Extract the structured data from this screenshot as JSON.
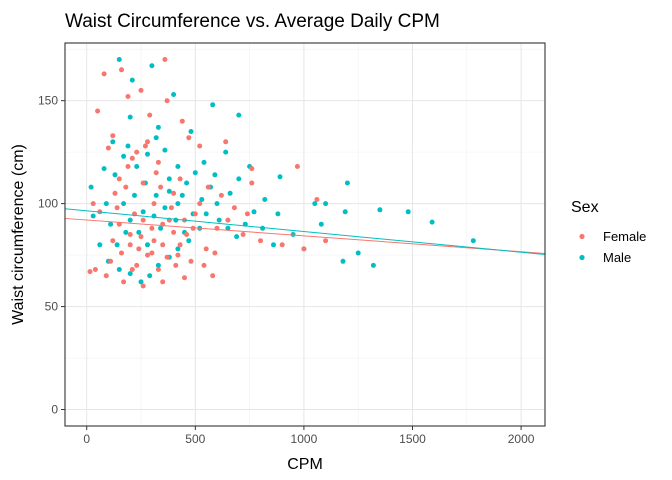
{
  "chart_data": {
    "type": "scatter",
    "title": "Waist Circumference vs. Average Daily CPM",
    "xlabel": "CPM",
    "ylabel": "Waist circumference (cm)",
    "xlim": [
      -100,
      2110
    ],
    "ylim": [
      -8,
      178
    ],
    "x_ticks": [
      0,
      500,
      1000,
      1500,
      2000
    ],
    "y_ticks": [
      0,
      50,
      100,
      150
    ],
    "grid": true,
    "legend": {
      "title": "Sex",
      "position": "right",
      "entries": [
        {
          "name": "Female",
          "color": "#F8766D"
        },
        {
          "name": "Male",
          "color": "#00BFC4"
        }
      ]
    },
    "series": [
      {
        "name": "Female",
        "color": "#F8766D",
        "trend": {
          "x": [
            -100,
            2110
          ],
          "y": [
            92.8,
            75.8
          ]
        },
        "points": [
          [
            80,
            163
          ],
          [
            160,
            165
          ],
          [
            360,
            170
          ],
          [
            250,
            155
          ],
          [
            50,
            145
          ],
          [
            190,
            152
          ],
          [
            370,
            150
          ],
          [
            290,
            143
          ],
          [
            440,
            140
          ],
          [
            120,
            133
          ],
          [
            100,
            127
          ],
          [
            330,
            120
          ],
          [
            280,
            130
          ],
          [
            520,
            128
          ],
          [
            470,
            132
          ],
          [
            640,
            130
          ],
          [
            760,
            117
          ],
          [
            970,
            118
          ],
          [
            1060,
            102
          ],
          [
            760,
            110
          ],
          [
            30,
            100
          ],
          [
            60,
            96
          ],
          [
            15,
            67
          ],
          [
            40,
            68
          ],
          [
            90,
            65
          ],
          [
            170,
            62
          ],
          [
            260,
            60
          ],
          [
            350,
            62
          ],
          [
            450,
            64
          ],
          [
            580,
            65
          ],
          [
            150,
            90
          ],
          [
            200,
            85
          ],
          [
            220,
            95
          ],
          [
            240,
            78
          ],
          [
            300,
            88
          ],
          [
            310,
            100
          ],
          [
            350,
            80
          ],
          [
            380,
            92
          ],
          [
            400,
            105
          ],
          [
            420,
            75
          ],
          [
            460,
            85
          ],
          [
            500,
            95
          ],
          [
            260,
            110
          ],
          [
            180,
            108
          ],
          [
            140,
            98
          ],
          [
            120,
            82
          ],
          [
            110,
            72
          ],
          [
            230,
            70
          ],
          [
            280,
            75
          ],
          [
            330,
            68
          ],
          [
            410,
            70
          ],
          [
            480,
            72
          ],
          [
            550,
            78
          ],
          [
            600,
            88
          ],
          [
            650,
            92
          ],
          [
            720,
            85
          ],
          [
            800,
            82
          ],
          [
            900,
            80
          ],
          [
            1000,
            78
          ],
          [
            1100,
            82
          ],
          [
            190,
            118
          ],
          [
            210,
            122
          ],
          [
            230,
            125
          ],
          [
            270,
            128
          ],
          [
            320,
            115
          ],
          [
            150,
            112
          ],
          [
            340,
            108
          ],
          [
            390,
            98
          ],
          [
            430,
            112
          ],
          [
            520,
            100
          ],
          [
            560,
            108
          ],
          [
            620,
            104
          ],
          [
            680,
            98
          ],
          [
            740,
            95
          ],
          [
            200,
            80
          ],
          [
            250,
            84
          ],
          [
            300,
            76
          ],
          [
            350,
            90
          ],
          [
            400,
            86
          ],
          [
            450,
            92
          ],
          [
            130,
            105
          ],
          [
            160,
            76
          ],
          [
            210,
            68
          ],
          [
            260,
            92
          ],
          [
            310,
            82
          ],
          [
            370,
            74
          ],
          [
            430,
            80
          ],
          [
            490,
            88
          ],
          [
            540,
            70
          ],
          [
            590,
            76
          ]
        ]
      },
      {
        "name": "Male",
        "color": "#00BFC4",
        "trend": {
          "x": [
            -100,
            2110
          ],
          "y": [
            97.5,
            75.3
          ]
        },
        "points": [
          [
            150,
            170
          ],
          [
            300,
            167
          ],
          [
            210,
            160
          ],
          [
            400,
            153
          ],
          [
            580,
            148
          ],
          [
            700,
            143
          ],
          [
            200,
            142
          ],
          [
            330,
            137
          ],
          [
            480,
            135
          ],
          [
            640,
            125
          ],
          [
            750,
            118
          ],
          [
            890,
            113
          ],
          [
            1200,
            110
          ],
          [
            1050,
            100
          ],
          [
            1100,
            100
          ],
          [
            1190,
            96
          ],
          [
            1350,
            97
          ],
          [
            1480,
            96
          ],
          [
            1590,
            91
          ],
          [
            1780,
            82
          ],
          [
            1250,
            76
          ],
          [
            1180,
            72
          ],
          [
            1320,
            70
          ],
          [
            950,
            85
          ],
          [
            880,
            95
          ],
          [
            820,
            102
          ],
          [
            860,
            80
          ],
          [
            1000,
            78
          ],
          [
            1080,
            90
          ],
          [
            700,
            112
          ],
          [
            660,
            105
          ],
          [
            600,
            100
          ],
          [
            550,
            95
          ],
          [
            520,
            88
          ],
          [
            470,
            82
          ],
          [
            420,
            78
          ],
          [
            380,
            74
          ],
          [
            330,
            70
          ],
          [
            290,
            65
          ],
          [
            250,
            62
          ],
          [
            200,
            66
          ],
          [
            150,
            68
          ],
          [
            100,
            72
          ],
          [
            60,
            80
          ],
          [
            30,
            94
          ],
          [
            20,
            108
          ],
          [
            80,
            117
          ],
          [
            120,
            130
          ],
          [
            170,
            123
          ],
          [
            230,
            118
          ],
          [
            270,
            110
          ],
          [
            320,
            104
          ],
          [
            360,
            98
          ],
          [
            410,
            92
          ],
          [
            450,
            86
          ],
          [
            490,
            95
          ],
          [
            530,
            102
          ],
          [
            570,
            108
          ],
          [
            610,
            92
          ],
          [
            650,
            88
          ],
          [
            690,
            84
          ],
          [
            730,
            90
          ],
          [
            770,
            96
          ],
          [
            810,
            88
          ],
          [
            170,
            100
          ],
          [
            200,
            92
          ],
          [
            240,
            86
          ],
          [
            280,
            80
          ],
          [
            310,
            94
          ],
          [
            340,
            88
          ],
          [
            380,
            106
          ],
          [
            420,
            100
          ],
          [
            460,
            110
          ],
          [
            500,
            115
          ],
          [
            540,
            120
          ],
          [
            590,
            114
          ],
          [
            280,
            124
          ],
          [
            360,
            126
          ],
          [
            420,
            118
          ],
          [
            320,
            132
          ],
          [
            380,
            112
          ],
          [
            440,
            104
          ],
          [
            260,
            96
          ],
          [
            220,
            104
          ],
          [
            180,
            86
          ],
          [
            140,
            80
          ],
          [
            110,
            90
          ],
          [
            90,
            100
          ],
          [
            130,
            114
          ],
          [
            190,
            128
          ]
        ]
      }
    ]
  }
}
